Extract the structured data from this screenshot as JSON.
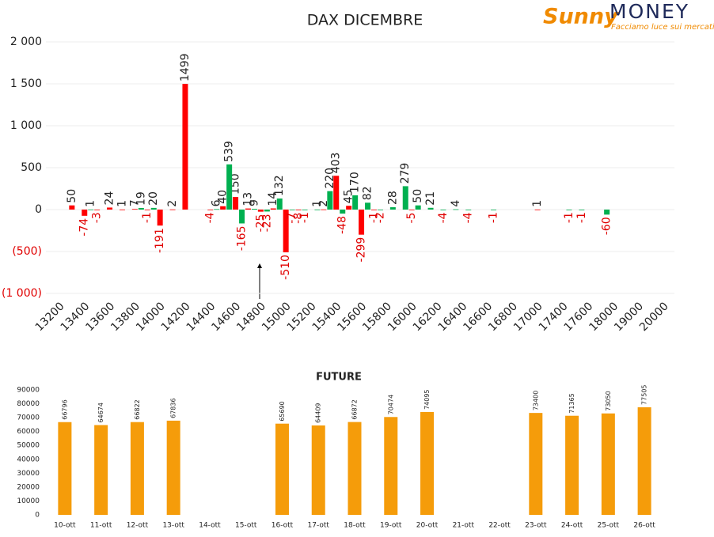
{
  "logo": {
    "brand": "Sunny",
    "name": "MONEY",
    "tagline": "Facciamo luce sui mercati"
  },
  "chart_data": [
    {
      "type": "bar",
      "title": "DAX DICEMBRE",
      "categories": [
        "13200",
        null,
        "13400",
        null,
        "13600",
        null,
        "13800",
        null,
        "14000",
        null,
        "14200",
        null,
        "14400",
        null,
        "14600",
        null,
        "14800",
        null,
        "15000",
        null,
        "15200",
        null,
        "15400",
        null,
        "15600",
        null,
        "15800",
        null,
        "16000",
        null,
        "16200",
        null,
        "16400",
        null,
        "16600",
        null,
        "16800",
        null,
        "17000",
        null,
        "17400",
        null,
        "17600",
        null,
        "18000",
        null,
        "19000",
        null,
        "20000",
        null
      ],
      "series": [
        {
          "color": "#ff0000",
          "values": [
            null,
            50,
            -74,
            -3,
            24,
            1,
            7,
            -1,
            -191,
            2,
            1499,
            null,
            -4,
            40,
            150,
            13,
            -25,
            14,
            -510,
            -8,
            null,
            2,
            403,
            45,
            -299,
            -1,
            null,
            null,
            -5,
            null,
            null,
            null,
            null,
            null,
            null,
            null,
            null,
            null,
            1,
            null,
            null,
            null,
            null,
            null,
            null,
            null,
            null,
            null,
            null,
            null
          ]
        },
        {
          "color": "#00b050",
          "values": [
            null,
            null,
            1,
            null,
            null,
            null,
            19,
            20,
            null,
            null,
            null,
            null,
            6,
            539,
            -165,
            9,
            -23,
            132,
            -7,
            -1,
            1,
            220,
            -48,
            170,
            82,
            -2,
            28,
            279,
            50,
            21,
            -4,
            4,
            -4,
            null,
            -1,
            null,
            null,
            null,
            null,
            null,
            -1,
            -1,
            null,
            -60,
            null,
            null,
            null,
            null,
            null,
            null
          ]
        }
      ],
      "ylim": [
        -1000,
        2000
      ],
      "yticks": [
        {
          "value": 2000,
          "label": "2 000"
        },
        {
          "value": 1500,
          "label": "1 500"
        },
        {
          "value": 1000,
          "label": "1 000"
        },
        500,
        0,
        {
          "value": -500,
          "label": "(500)"
        },
        {
          "value": -1000,
          "label": "(1 000)"
        }
      ],
      "grid": true
    },
    {
      "type": "bar",
      "title": "FUTURE",
      "categories": [
        "10-ott",
        "11-ott",
        "12-ott",
        "13-ott",
        "14-ott",
        "15-ott",
        "16-ott",
        "17-ott",
        "18-ott",
        "19-ott",
        "20-ott",
        "21-ott",
        "22-ott",
        "23-ott",
        "24-ott",
        "25-ott",
        "26-ott"
      ],
      "values": [
        66796,
        64674,
        66822,
        67836,
        null,
        null,
        65690,
        64409,
        66872,
        70474,
        74095,
        null,
        null,
        73400,
        71365,
        73050,
        77505
      ],
      "color": "#f59c0a",
      "ylim": [
        0,
        90000
      ],
      "yticks": [
        0,
        10000,
        20000,
        30000,
        40000,
        50000,
        60000,
        70000,
        80000,
        90000
      ],
      "grid": false
    }
  ]
}
